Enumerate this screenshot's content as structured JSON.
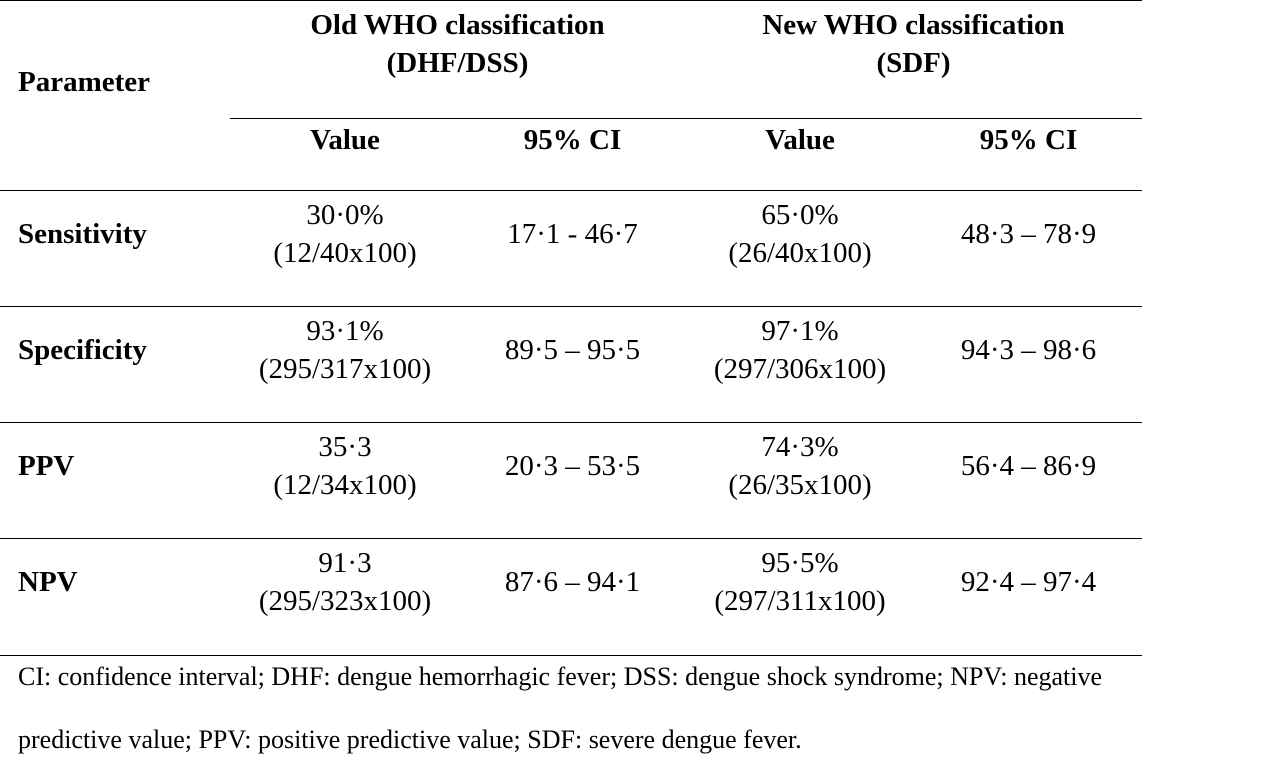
{
  "table": {
    "header": {
      "parameter": "Parameter",
      "group_old_line1": "Old WHO classification",
      "group_old_line2": "(DHF/DSS)",
      "group_new_line1": "New WHO classification",
      "group_new_line2": "(SDF)",
      "col_value_old": "Value",
      "col_ci_old": "95% CI",
      "col_value_new": "Value",
      "col_ci_new": "95% CI"
    },
    "rows": [
      {
        "parameter": "Sensitivity",
        "old_value": "30·0%",
        "old_ratio": "(12/40x100)",
        "old_ci": "17·1 - 46·7",
        "new_value": "65·0%",
        "new_ratio": "(26/40x100)",
        "new_ci": "48·3 – 78·9"
      },
      {
        "parameter": "Specificity",
        "old_value": "93·1%",
        "old_ratio": "(295/317x100)",
        "old_ci": "89·5 – 95·5",
        "new_value": "97·1%",
        "new_ratio": "(297/306x100)",
        "new_ci": "94·3 – 98·6"
      },
      {
        "parameter": "PPV",
        "old_value": "35·3",
        "old_ratio": "(12/34x100)",
        "old_ci": "20·3 – 53·5",
        "new_value": "74·3%",
        "new_ratio": "(26/35x100)",
        "new_ci": "56·4 – 86·9"
      },
      {
        "parameter": "NPV",
        "old_value": "91·3",
        "old_ratio": "(295/323x100)",
        "old_ci": "87·6 – 94·1",
        "new_value": "95·5%",
        "new_ratio": "(297/311x100)",
        "new_ci": "92·4 – 97·4"
      }
    ],
    "footnote_line1": "CI: confidence interval; DHF: dengue hemorrhagic fever; DSS: dengue shock syndrome; NPV: negative",
    "footnote_line2": "predictive value; PPV: positive predictive value; SDF: severe dengue fever."
  }
}
